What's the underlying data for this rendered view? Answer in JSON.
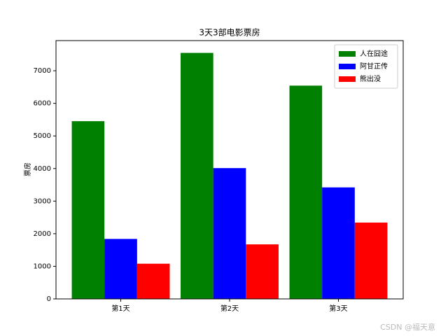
{
  "chart_data": {
    "type": "bar",
    "title": "3天3部电影票房",
    "ylabel": "票房",
    "categories": [
      "第1天",
      "第2天",
      "第3天"
    ],
    "series": [
      {
        "name": "人在囧途",
        "color": "#008000",
        "values": [
          5453,
          7548,
          6543
        ]
      },
      {
        "name": "阿甘正传",
        "color": "#0000ff",
        "values": [
          1840,
          4013,
          3421
        ]
      },
      {
        "name": "熊出没",
        "color": "#ff0000",
        "values": [
          1080,
          1673,
          2342
        ]
      }
    ],
    "ylim": [
      0,
      7925
    ],
    "yticks": [
      0,
      1000,
      2000,
      3000,
      4000,
      5000,
      6000,
      7000
    ],
    "legend": "upper right",
    "grid": false
  },
  "watermark": "CSDN @福天意"
}
